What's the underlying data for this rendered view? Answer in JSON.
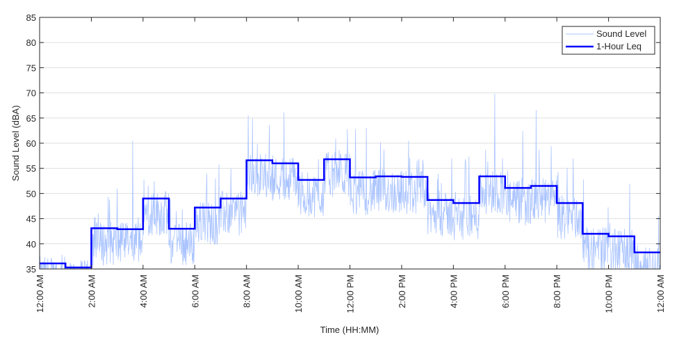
{
  "chart_data": {
    "type": "line",
    "title": "",
    "xlabel": "Time (HH:MM)",
    "ylabel": "Sound Level (dBA)",
    "ylim": [
      35,
      85
    ],
    "yticks": [
      35,
      40,
      45,
      50,
      55,
      60,
      65,
      70,
      75,
      80,
      85
    ],
    "xlim_hours": [
      0,
      24
    ],
    "xticks_hours": [
      0,
      2,
      4,
      6,
      8,
      10,
      12,
      14,
      16,
      18,
      20,
      22,
      24
    ],
    "xtick_labels": [
      "12:00 AM",
      "2:00 AM",
      "4:00 AM",
      "6:00 AM",
      "8:00 AM",
      "10:00 AM",
      "12:00 PM",
      "2:00 PM",
      "4:00 PM",
      "6:00 PM",
      "8:00 PM",
      "10:00 PM",
      "12:00 AM"
    ],
    "grid": "horizontal",
    "legend_position": "top-right",
    "series": [
      {
        "name": "Sound Level",
        "color": "#aac4ff",
        "style": "thin-noisy",
        "notable_peaks": [
          [
            3.6,
            60.5
          ],
          [
            17.6,
            69.8
          ],
          [
            19.2,
            66.6
          ]
        ]
      },
      {
        "name": "1-Hour Leq",
        "color": "#0000ff",
        "style": "step",
        "hours": [
          0,
          1,
          2,
          3,
          4,
          5,
          6,
          7,
          8,
          9,
          10,
          11,
          12,
          13,
          14,
          15,
          16,
          17,
          18,
          19,
          20,
          21,
          22,
          23
        ],
        "values": [
          36.1,
          35.3,
          43.1,
          42.9,
          49.0,
          43.0,
          47.2,
          49.0,
          56.6,
          56.0,
          52.7,
          56.8,
          53.2,
          53.4,
          53.3,
          48.7,
          48.1,
          53.4,
          51.1,
          51.5,
          48.1,
          42.0,
          41.5,
          38.3
        ]
      }
    ]
  }
}
